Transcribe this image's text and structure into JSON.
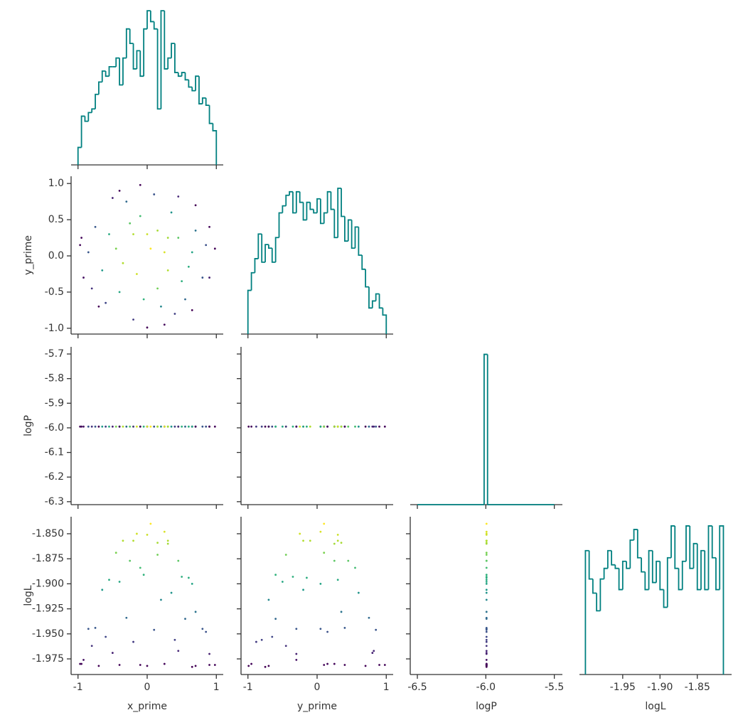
{
  "chart_data": {
    "type": "corner",
    "variables": [
      "x_prime",
      "y_prime",
      "logP",
      "logL"
    ],
    "colormap": "viridis",
    "color_by": "logL",
    "hist_color": "#008080",
    "x_axes": {
      "x_prime": {
        "lim": [
          -1.1,
          1.1
        ],
        "ticks": [
          -1,
          0,
          1
        ]
      },
      "y_prime": {
        "lim": [
          -1.1,
          1.1
        ],
        "ticks": [
          -1,
          0,
          1
        ]
      },
      "logP": {
        "lim": [
          -6.552,
          -5.441
        ],
        "ticks": [
          -6.5,
          {
            "value": -6.0,
            "label": "-6.0"
          },
          -5.5
        ]
      },
      "logL": {
        "lim": [
          -2.008,
          -1.804
        ],
        "ticks": [
          -1.95,
          {
            "value": -1.9,
            "label": "-1.90"
          },
          -1.85
        ]
      }
    },
    "y_axes": {
      "y_prime": {
        "lim": [
          -1.08,
          1.1
        ],
        "ticks": [
          {
            "value": 1,
            "label": "1.0"
          },
          0.5,
          {
            "value": 0,
            "label": "0.0"
          },
          -0.5,
          {
            "value": -1,
            "label": "-1.0"
          }
        ]
      },
      "logP": {
        "lim": [
          -6.312,
          -5.671
        ],
        "ticks": [
          -5.7,
          -5.8,
          -5.9,
          {
            "value": -6,
            "label": "-6.0"
          },
          -6.1,
          -6.2,
          -6.3
        ]
      },
      "logL": {
        "lim": [
          -1.9906,
          -1.833
        ],
        "ticks": [
          {
            "value": -1.85,
            "label": "-1.850"
          },
          -1.875,
          {
            "value": -1.9,
            "label": "-1.900"
          },
          -1.925,
          {
            "value": -1.95,
            "label": "-1.950"
          },
          -1.975
        ]
      }
    },
    "histograms": {
      "x_prime": {
        "ylim": [
          0,
          217
        ],
        "bins": [
          -1,
          -0.95,
          -0.9,
          -0.85,
          -0.8,
          -0.75,
          -0.7,
          -0.65,
          -0.6,
          -0.55,
          -0.5,
          -0.45,
          -0.4,
          -0.35,
          -0.3,
          -0.25,
          -0.2,
          -0.15,
          -0.1,
          -0.05,
          0,
          0.05,
          0.1,
          0.15,
          0.2,
          0.25,
          0.3,
          0.35,
          0.4,
          0.45,
          0.5,
          0.55,
          0.6,
          0.65,
          0.7,
          0.75,
          0.8,
          0.85,
          0.9,
          0.95,
          1
        ],
        "counts": [
          24,
          67,
          60,
          72,
          77,
          97,
          114,
          129,
          122,
          135,
          135,
          147,
          110,
          147,
          187,
          167,
          132,
          157,
          122,
          187,
          212,
          197,
          187,
          77,
          212,
          132,
          147,
          167,
          127,
          122,
          127,
          117,
          107,
          102,
          122,
          84,
          92,
          82,
          57,
          47
        ]
      },
      "y_prime": {
        "ylim": [
          0,
          224
        ],
        "bins": [
          -1,
          -0.95,
          -0.9,
          -0.85,
          -0.8,
          -0.75,
          -0.7,
          -0.65,
          -0.6,
          -0.55,
          -0.5,
          -0.45,
          -0.4,
          -0.35,
          -0.3,
          -0.25,
          -0.2,
          -0.15,
          -0.1,
          -0.05,
          0,
          0.05,
          0.1,
          0.15,
          0.2,
          0.25,
          0.3,
          0.35,
          0.4,
          0.45,
          0.5,
          0.55,
          0.6,
          0.65,
          0.7,
          0.75,
          0.8,
          0.85,
          0.9,
          0.95,
          1
        ],
        "counts": [
          62,
          87,
          107,
          142,
          102,
          127,
          122,
          102,
          137,
          172,
          182,
          197,
          202,
          172,
          202,
          187,
          162,
          187,
          177,
          172,
          192,
          157,
          172,
          202,
          177,
          137,
          207,
          167,
          132,
          162,
          122,
          152,
          112,
          92,
          67,
          37,
          47,
          57,
          37,
          27
        ]
      },
      "logP": {
        "ylim": [
          0,
          1050
        ],
        "bins": [
          -6.5,
          -6.0125,
          -5.9875,
          -5.5
        ],
        "counts": [
          0,
          1000,
          0
        ]
      },
      "logL": {
        "ylim": [
          0,
          223
        ],
        "bins": [
          -2,
          -1.995,
          -1.99,
          -1.985,
          -1.98,
          -1.975,
          -1.97,
          -1.965,
          -1.96,
          -1.955,
          -1.95,
          -1.945,
          -1.94,
          -1.935,
          -1.93,
          -1.925,
          -1.92,
          -1.915,
          -1.91,
          -1.905,
          -1.9,
          -1.895,
          -1.89,
          -1.885,
          -1.88,
          -1.875,
          -1.87,
          -1.865,
          -1.86,
          -1.855,
          -1.85,
          -1.845,
          -1.84,
          -1.835,
          -1.83,
          -1.825,
          -1.82,
          -1.815
        ],
        "counts": [
          175,
          135,
          115,
          90,
          135,
          150,
          175,
          155,
          150,
          120,
          160,
          150,
          190,
          205,
          165,
          145,
          120,
          175,
          130,
          160,
          120,
          95,
          165,
          210,
          150,
          120,
          160,
          210,
          150,
          185,
          120,
          175,
          120,
          210,
          165,
          120,
          210
        ]
      }
    },
    "samples": {
      "x_prime": [
        0.05,
        -0.2,
        0.3,
        -0.35,
        0.15,
        0.45,
        -0.1,
        -0.55,
        0.6,
        -0.4,
        0.35,
        -0.65,
        0.2,
        0.7,
        -0.3,
        -0.75,
        0.55,
        -0.6,
        0.8,
        0.1,
        -0.85,
        0.85,
        -0.2,
        0.45,
        -0.5,
        0.9,
        -0.92,
        0.25,
        -0.95,
        0.98,
        0.0,
        -0.7,
        0.7,
        0.65,
        -0.1,
        0.0,
        0.25,
        -0.15,
        0.5,
        -0.45,
        0.15,
        -0.05,
        0.65,
        -0.25,
        0.4,
        -0.8,
        -0.4,
        0.9,
        -0.97,
        0.3
      ],
      "y_prime": [
        0.1,
        0.3,
        -0.2,
        -0.1,
        -0.45,
        0.25,
        0.55,
        0.3,
        -0.15,
        -0.5,
        0.6,
        -0.2,
        -0.7,
        0.35,
        0.75,
        0.4,
        -0.6,
        -0.65,
        -0.3,
        0.85,
        0.05,
        0.15,
        -0.88,
        0.82,
        0.8,
        -0.3,
        -0.3,
        -0.95,
        0.25,
        0.1,
        -0.99,
        -0.7,
        0.7,
        -0.75,
        0.98,
        0.3,
        0.05,
        -0.25,
        -0.35,
        0.1,
        0.35,
        -0.6,
        0.05,
        0.45,
        -0.8,
        -0.45,
        0.9,
        0.4,
        0.15,
        0.25
      ],
      "logP": [
        -5.995,
        -5.995,
        -5.995,
        -5.995,
        -5.995,
        -5.995,
        -5.995,
        -5.995,
        -5.995,
        -5.995,
        -5.995,
        -5.995,
        -5.995,
        -5.995,
        -5.995,
        -5.995,
        -5.995,
        -5.995,
        -5.995,
        -5.995,
        -5.995,
        -5.995,
        -5.995,
        -5.995,
        -5.995,
        -5.995,
        -5.995,
        -5.995,
        -5.995,
        -5.995,
        -5.995,
        -5.995,
        -5.995,
        -5.995,
        -5.995,
        -5.995,
        -5.995,
        -5.995,
        -5.995,
        -5.995,
        -5.995,
        -5.995,
        -5.995,
        -5.995,
        -5.995,
        -5.995,
        -5.995,
        -5.995,
        -5.995,
        -5.995
      ],
      "logL": [
        -1.84,
        -1.857,
        -1.857,
        -1.857,
        -1.871,
        -1.877,
        -1.884,
        -1.896,
        -1.894,
        -1.898,
        -1.909,
        -1.906,
        -1.916,
        -1.928,
        -1.934,
        -1.944,
        -1.935,
        -1.953,
        -1.945,
        -1.946,
        -1.945,
        -1.948,
        -1.958,
        -1.967,
        -1.969,
        -1.97,
        -1.976,
        -1.98,
        -1.98,
        -1.981,
        -1.982,
        -1.982,
        -1.982,
        -1.983,
        -1.981,
        -1.851,
        -1.848,
        -1.85,
        -1.893,
        -1.869,
        -1.859,
        -1.891,
        -1.9,
        -1.877,
        -1.956,
        -1.962,
        -1.981,
        -1.981,
        -1.98,
        -1.86
      ]
    }
  }
}
